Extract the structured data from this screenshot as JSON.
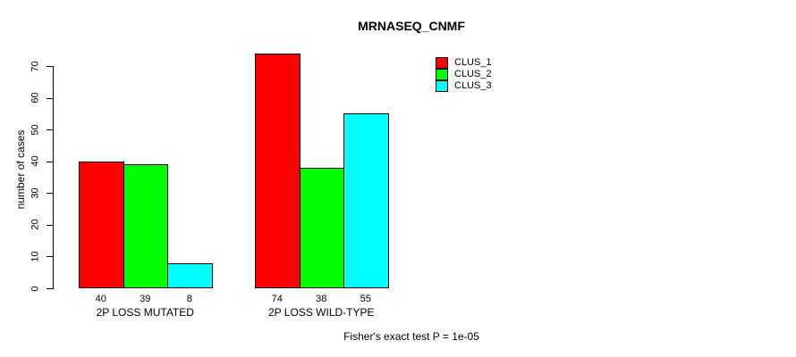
{
  "chart_data": {
    "type": "bar",
    "title": "MRNASEQ_CNMF",
    "ylabel": "number of cases",
    "xlabel": "",
    "categories": [
      "2P LOSS MUTATED",
      "2P LOSS WILD-TYPE"
    ],
    "series": [
      {
        "name": "CLUS_1",
        "color": "#ff0000",
        "values": [
          40,
          74
        ]
      },
      {
        "name": "CLUS_2",
        "color": "#00ff00",
        "values": [
          39,
          38
        ]
      },
      {
        "name": "CLUS_3",
        "color": "#00ffff",
        "values": [
          8,
          55
        ]
      }
    ],
    "bar_value_labels": [
      [
        40,
        39,
        8
      ],
      [
        74,
        38,
        55
      ]
    ],
    "yticks": [
      0,
      10,
      20,
      30,
      40,
      50,
      60,
      70
    ],
    "ylim": [
      0,
      74
    ],
    "grid": false,
    "legend_position": "top-right",
    "caption": "Fisher's exact test P = 1e-05"
  }
}
